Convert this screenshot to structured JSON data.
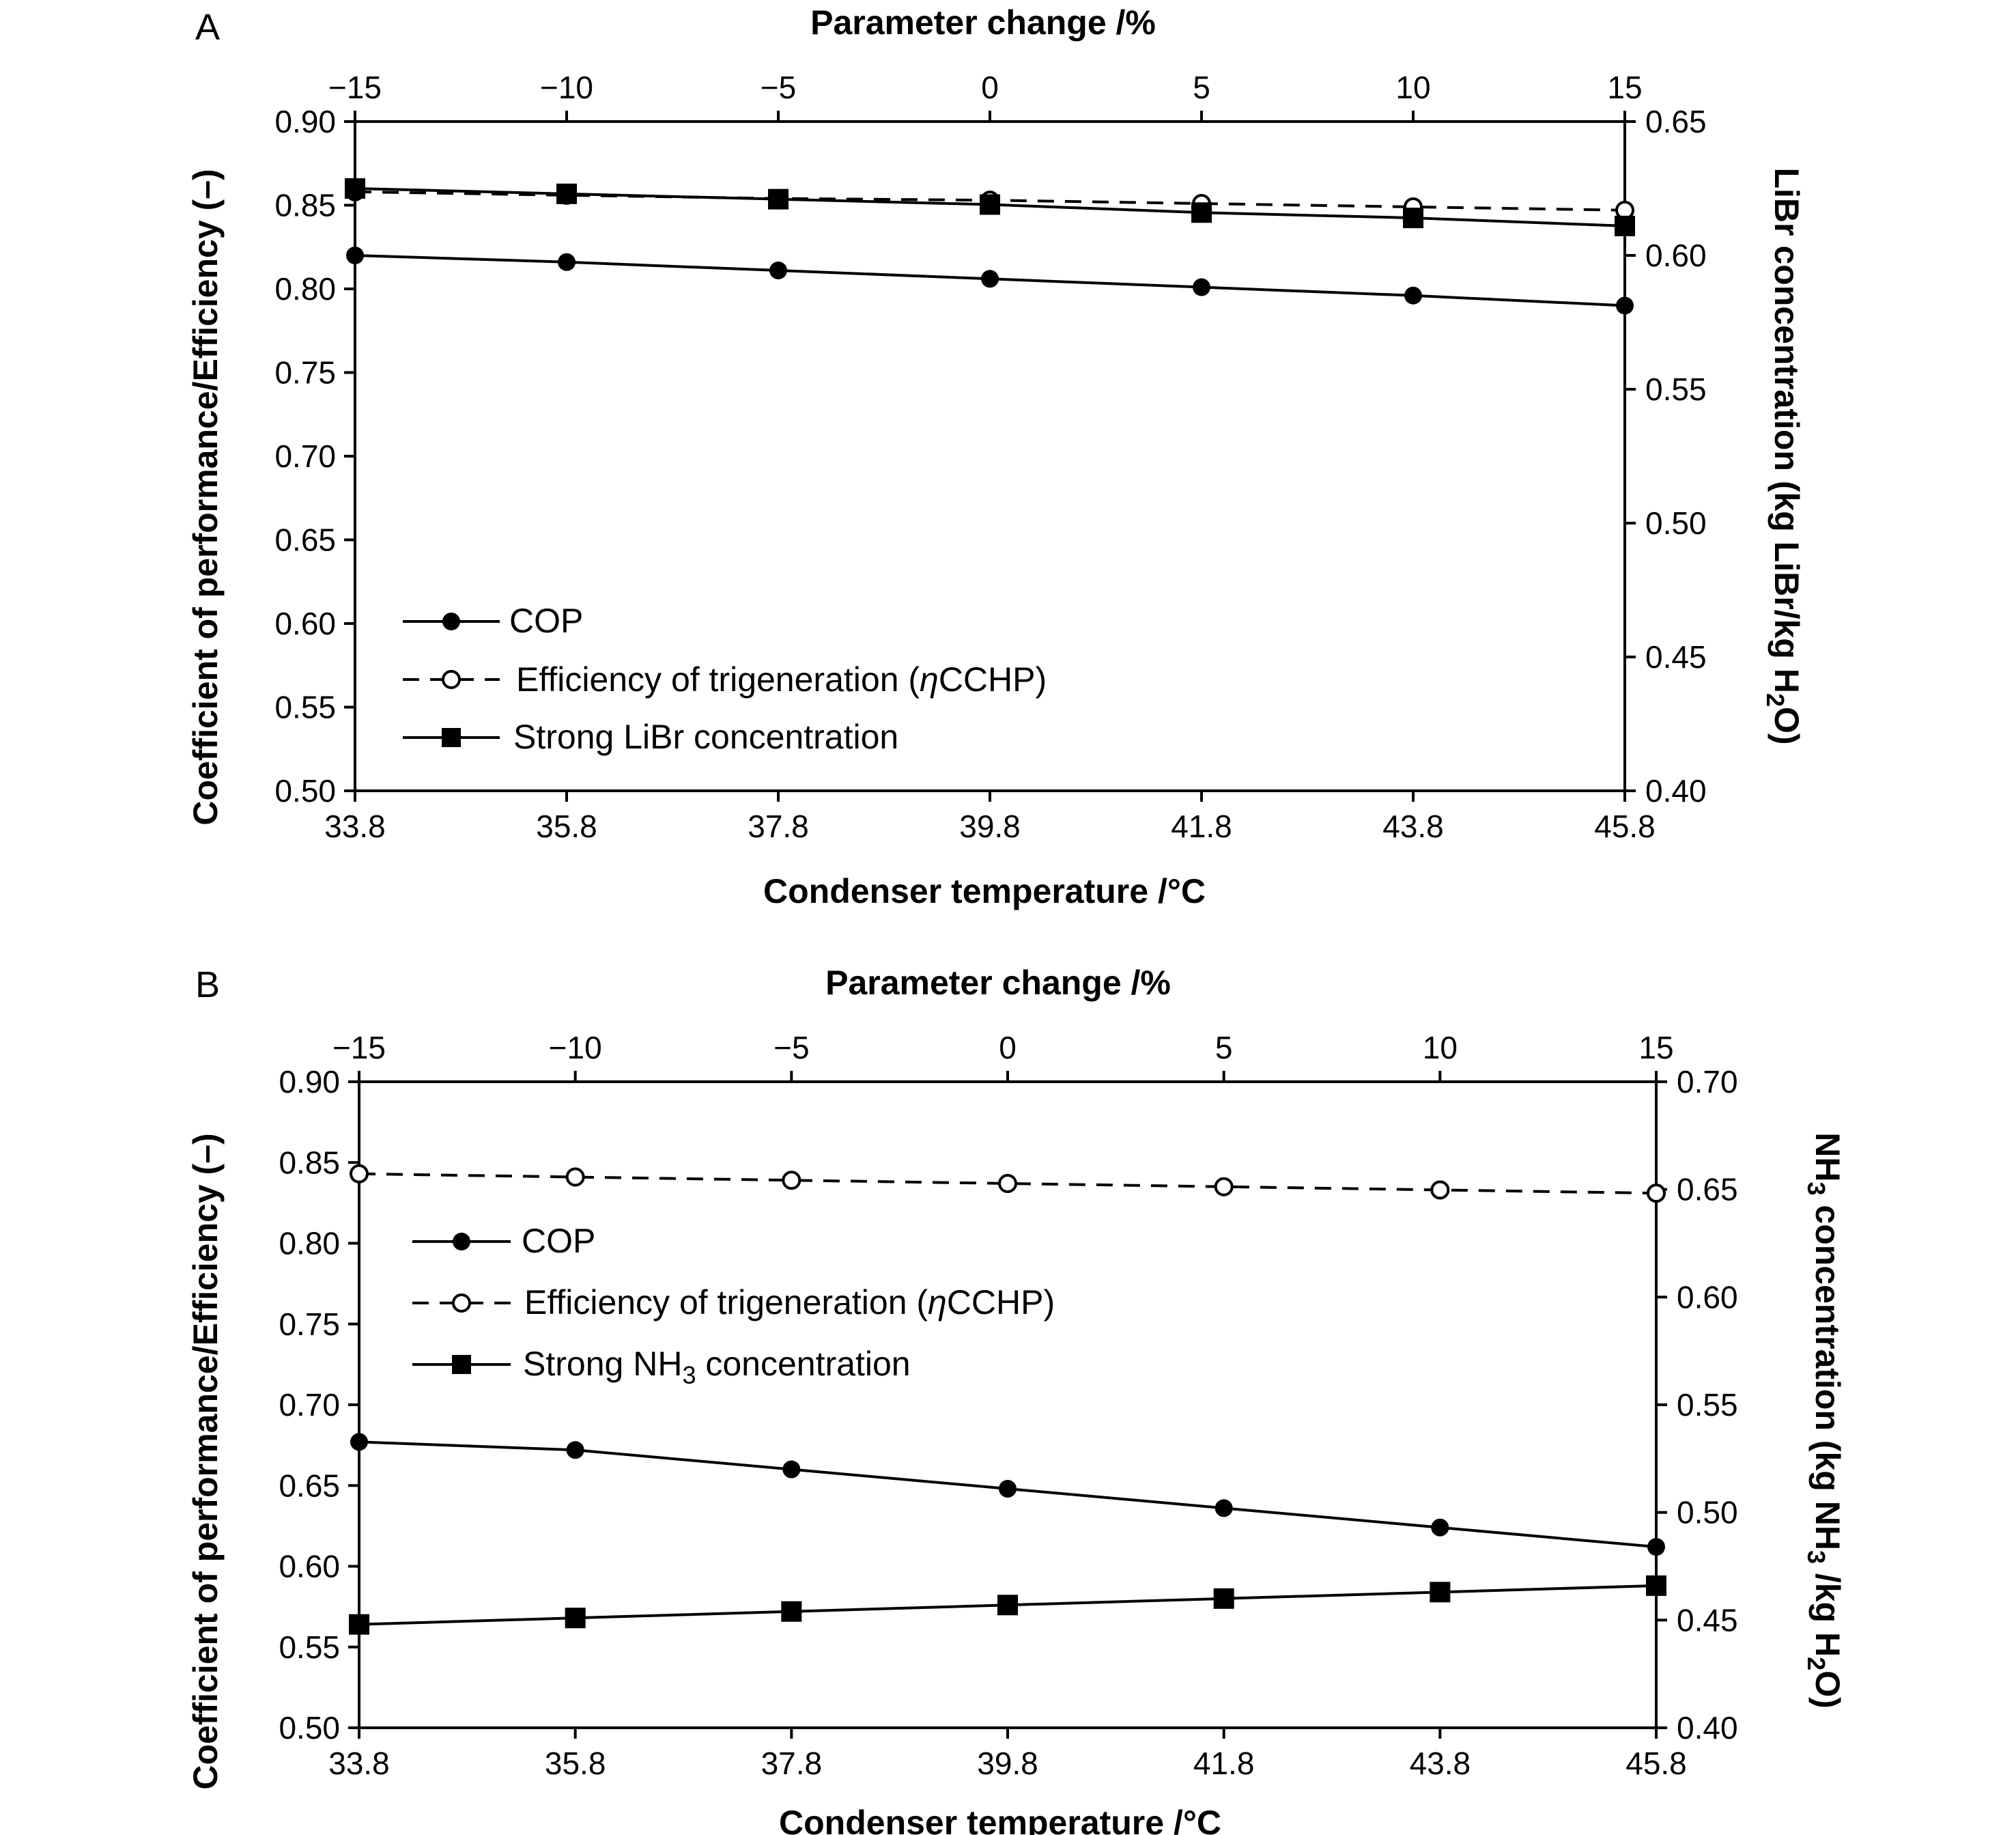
{
  "chart_data": [
    {
      "panel": "A",
      "type": "line",
      "top_axis_title": "Parameter change /%",
      "top_ticks": [
        "−15",
        "−10",
        "−5",
        "0",
        "5",
        "10",
        "15"
      ],
      "xlabel": "Condenser temperature /°C",
      "categories": [
        "33.8",
        "35.8",
        "37.8",
        "39.8",
        "41.8",
        "43.8",
        "45.8"
      ],
      "x": [
        33.8,
        35.8,
        37.8,
        39.8,
        41.8,
        43.8,
        45.8
      ],
      "ylabel": "Coefficient of performance/Efficiency (–)",
      "ylim": [
        0.5,
        0.9
      ],
      "yticks": [
        "0.50",
        "0.55",
        "0.60",
        "0.65",
        "0.70",
        "0.75",
        "0.80",
        "0.85",
        "0.90"
      ],
      "y2label": "LiBr concentration (kg LiBr/kg H2O)",
      "y2lim": [
        0.4,
        0.65
      ],
      "y2ticks": [
        "0.40",
        "0.45",
        "0.50",
        "0.55",
        "0.60",
        "0.65"
      ],
      "legend_position": "lower-left",
      "series": [
        {
          "name": "COP",
          "axis": "left",
          "marker": "filled-circle",
          "line": "solid",
          "values": [
            0.82,
            0.816,
            0.811,
            0.806,
            0.801,
            0.796,
            0.79
          ]
        },
        {
          "name": "Efficiency of trigeneration (ηCCHP)",
          "legend_prefix": "Efficiency of trigeneration (",
          "legend_italic": "η",
          "legend_suffix": "CCHP)",
          "axis": "left",
          "marker": "open-circle",
          "line": "dashed",
          "values": [
            0.858,
            0.856,
            0.854,
            0.853,
            0.851,
            0.849,
            0.847
          ]
        },
        {
          "name": "Strong LiBr concentration",
          "axis": "right",
          "marker": "filled-square",
          "line": "solid",
          "values": [
            0.625,
            0.623,
            0.621,
            0.619,
            0.616,
            0.614,
            0.611
          ]
        }
      ]
    },
    {
      "panel": "B",
      "type": "line",
      "top_axis_title": "Parameter change /%",
      "top_ticks": [
        "−15",
        "−10",
        "−5",
        "0",
        "5",
        "10",
        "15"
      ],
      "xlabel": "Condenser temperature /°C",
      "categories": [
        "33.8",
        "35.8",
        "37.8",
        "39.8",
        "41.8",
        "43.8",
        "45.8"
      ],
      "x": [
        33.8,
        35.8,
        37.8,
        39.8,
        41.8,
        43.8,
        45.8
      ],
      "ylabel": "Coefficient of performance/Efficiency (–)",
      "ylim": [
        0.5,
        0.9
      ],
      "yticks": [
        "0.50",
        "0.55",
        "0.60",
        "0.65",
        "0.70",
        "0.75",
        "0.80",
        "0.85",
        "0.90"
      ],
      "y2label": "NH3 concentration (kg NH3 /kg H2O)",
      "y2lim": [
        0.4,
        0.7
      ],
      "y2ticks": [
        "0.40",
        "0.45",
        "0.50",
        "0.55",
        "0.60",
        "0.65",
        "0.70"
      ],
      "legend_position": "upper-left",
      "series": [
        {
          "name": "COP",
          "axis": "left",
          "marker": "filled-circle",
          "line": "solid",
          "values": [
            0.677,
            0.672,
            0.66,
            0.648,
            0.636,
            0.624,
            0.612
          ]
        },
        {
          "name": "Efficiency of trigeneration (ηCCHP)",
          "legend_prefix": "Efficiency of trigeneration (",
          "legend_italic": "η",
          "legend_suffix": "CCHP)",
          "axis": "left",
          "marker": "open-circle",
          "line": "dashed",
          "values": [
            0.843,
            0.841,
            0.839,
            0.837,
            0.835,
            0.833,
            0.831
          ]
        },
        {
          "name": "Strong NH3 concentration",
          "axis": "right",
          "marker": "filled-square",
          "line": "solid",
          "values": [
            0.448,
            0.451,
            0.454,
            0.457,
            0.46,
            0.463,
            0.466
          ]
        }
      ]
    }
  ]
}
